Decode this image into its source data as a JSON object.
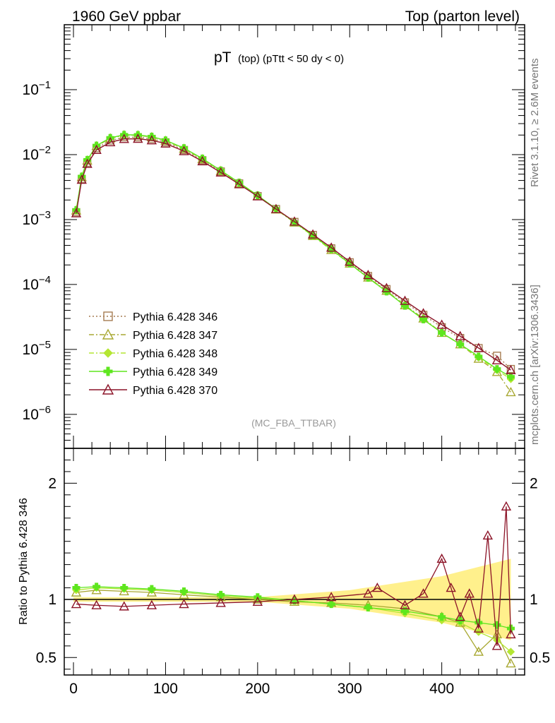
{
  "header": {
    "left": "1960 GeV ppbar",
    "right": "Top (parton level)"
  },
  "side": {
    "rivet": "Rivet 3.1.10, ≥ 2.6M events",
    "mcplots": "mcplots.cern.ch [arXiv:1306.3436]"
  },
  "chart_data": [
    {
      "type": "line",
      "title_main": "pT",
      "title_sub": "(top)  (pTtt < 50 dy < 0)",
      "watermark": "(MC_FBA_TTBAR)",
      "ylabel": "",
      "xlabel": "",
      "yscale": "log",
      "ylim": [
        3e-07,
        1
      ],
      "xlim": [
        -10,
        490
      ],
      "x_ticks": [
        0,
        100,
        200,
        300,
        400
      ],
      "y_tick_labels": [
        "10^-1",
        "10^-2",
        "10^-3",
        "10^-4",
        "10^-5",
        "10^-6"
      ],
      "legend_position": "bottom-left",
      "series": [
        {
          "name": "Pythia 6.428 346",
          "color": "#a67c52",
          "marker": "square",
          "line": "dotted",
          "values_x": [
            3,
            9,
            15,
            25,
            40,
            55,
            70,
            85,
            100,
            120,
            140,
            160,
            180,
            200,
            220,
            240,
            260,
            280,
            300,
            320,
            340,
            360,
            380,
            400,
            420,
            440,
            460,
            475
          ],
          "values_y": [
            0.0013,
            0.0042,
            0.0075,
            0.0125,
            0.0165,
            0.0185,
            0.0185,
            0.0175,
            0.0155,
            0.0118,
            0.0082,
            0.0055,
            0.0036,
            0.0023,
            0.00145,
            0.00092,
            0.00058,
            0.00036,
            0.00022,
            0.000135,
            8.5e-05,
            5.3e-05,
            3.4e-05,
            2.2e-05,
            1.5e-05,
            1.05e-05,
            8e-06,
            5e-06
          ]
        },
        {
          "name": "Pythia 6.428 347",
          "color": "#a8a832",
          "marker": "triangle-open",
          "line": "dashdot",
          "values_x": [
            3,
            9,
            15,
            25,
            40,
            55,
            70,
            85,
            100,
            120,
            140,
            160,
            180,
            200,
            220,
            240,
            260,
            280,
            300,
            320,
            340,
            360,
            380,
            400,
            420,
            440,
            460,
            475
          ],
          "values_y": [
            0.00138,
            0.0045,
            0.0081,
            0.0135,
            0.0178,
            0.0199,
            0.0198,
            0.0186,
            0.0163,
            0.0123,
            0.0085,
            0.0056,
            0.0036,
            0.0023,
            0.00143,
            0.0009,
            0.00056,
            0.00034,
            0.00021,
            0.000128,
            8e-05,
            4.8e-05,
            3e-05,
            1.8e-05,
            1.2e-05,
            7.2e-06,
            4.5e-06,
            2.2e-06
          ]
        },
        {
          "name": "Pythia 6.428 348",
          "color": "#b4e632",
          "marker": "diamond",
          "line": "dashdot",
          "values_x": [
            3,
            9,
            15,
            25,
            40,
            55,
            70,
            85,
            100,
            120,
            140,
            160,
            180,
            200,
            220,
            240,
            260,
            280,
            300,
            320,
            340,
            360,
            380,
            400,
            420,
            440,
            460,
            475
          ],
          "values_y": [
            0.0014,
            0.0046,
            0.0082,
            0.0137,
            0.018,
            0.0201,
            0.02,
            0.0188,
            0.0165,
            0.0125,
            0.0086,
            0.0057,
            0.0037,
            0.00235,
            0.00145,
            0.00091,
            0.00056,
            0.00034,
            0.00021,
            0.000126,
            7.8e-05,
            4.7e-05,
            2.9e-05,
            1.8e-05,
            1.2e-05,
            7.5e-06,
            4.8e-06,
            3.5e-06
          ]
        },
        {
          "name": "Pythia 6.428 349",
          "color": "#5ee61e",
          "marker": "cross",
          "line": "solid",
          "values_x": [
            3,
            9,
            15,
            25,
            40,
            55,
            70,
            85,
            100,
            120,
            140,
            160,
            180,
            200,
            220,
            240,
            260,
            280,
            300,
            320,
            340,
            360,
            380,
            400,
            420,
            440,
            460,
            475
          ],
          "values_y": [
            0.0014,
            0.0046,
            0.0083,
            0.0138,
            0.0181,
            0.0202,
            0.0201,
            0.0189,
            0.0166,
            0.0126,
            0.0087,
            0.0057,
            0.0037,
            0.00236,
            0.00146,
            0.00091,
            0.00057,
            0.00035,
            0.00021,
            0.000127,
            7.8e-05,
            4.7e-05,
            2.9e-05,
            1.8e-05,
            1.2e-05,
            7.8e-06,
            5e-06,
            3.8e-06
          ]
        },
        {
          "name": "Pythia 6.428 370",
          "color": "#8c1428",
          "marker": "triangle-open",
          "line": "solid",
          "values_x": [
            3,
            9,
            15,
            25,
            40,
            55,
            70,
            85,
            100,
            120,
            140,
            160,
            180,
            200,
            220,
            240,
            260,
            280,
            300,
            320,
            340,
            360,
            380,
            400,
            420,
            440,
            460,
            475
          ],
          "values_y": [
            0.00125,
            0.0041,
            0.0072,
            0.0118,
            0.0155,
            0.0174,
            0.0175,
            0.0166,
            0.0148,
            0.0113,
            0.0079,
            0.0053,
            0.0035,
            0.00228,
            0.00145,
            0.00093,
            0.00059,
            0.00037,
            0.000225,
            0.00014,
            8.8e-05,
            5.6e-05,
            3.6e-05,
            2.4e-05,
            1.6e-05,
            1.05e-05,
            6.8e-06,
            4.8e-06
          ]
        }
      ]
    },
    {
      "type": "line",
      "ylabel": "Ratio to Pythia 6.428 346",
      "xlabel": "",
      "ylim": [
        0.35,
        2.3
      ],
      "xlim": [
        -10,
        490
      ],
      "y_ticks": [
        0.5,
        1,
        2
      ],
      "y_tick_labels": [
        "0.5",
        "1",
        "2"
      ],
      "x_ticks": [
        0,
        100,
        200,
        300,
        400
      ],
      "x_tick_labels": [
        "0",
        "100",
        "200",
        "300",
        "400"
      ],
      "reference_band": {
        "color": "#fff08c",
        "upper_at_x": [
          [
            0,
            1.02
          ],
          [
            200,
            1.02
          ],
          [
            300,
            1.08
          ],
          [
            400,
            1.2
          ],
          [
            475,
            1.35
          ]
        ],
        "lower_at_x": [
          [
            0,
            0.98
          ],
          [
            200,
            0.98
          ],
          [
            300,
            0.92
          ],
          [
            400,
            0.8
          ],
          [
            475,
            0.65
          ]
        ]
      },
      "series": [
        {
          "name": "Pythia 6.428 347",
          "color": "#a8a832",
          "values_x": [
            3,
            25,
            55,
            85,
            120,
            160,
            200,
            240,
            280,
            320,
            360,
            400,
            420,
            440,
            460,
            475
          ],
          "values_y": [
            1.06,
            1.08,
            1.07,
            1.06,
            1.04,
            1.02,
            1.0,
            0.98,
            0.97,
            0.95,
            0.92,
            0.85,
            0.8,
            0.55,
            0.7,
            0.45
          ]
        },
        {
          "name": "Pythia 6.428 348",
          "color": "#b4e632",
          "values_x": [
            3,
            25,
            55,
            85,
            120,
            160,
            200,
            240,
            280,
            320,
            360,
            400,
            420,
            440,
            460,
            475
          ],
          "values_y": [
            1.08,
            1.1,
            1.09,
            1.08,
            1.06,
            1.03,
            1.01,
            0.99,
            0.96,
            0.93,
            0.88,
            0.82,
            0.8,
            0.72,
            0.65,
            0.55
          ]
        },
        {
          "name": "Pythia 6.428 349",
          "color": "#5ee61e",
          "values_x": [
            3,
            25,
            55,
            85,
            120,
            160,
            200,
            240,
            280,
            320,
            360,
            400,
            420,
            440,
            460,
            475
          ],
          "values_y": [
            1.1,
            1.11,
            1.1,
            1.09,
            1.07,
            1.04,
            1.02,
            0.99,
            0.96,
            0.93,
            0.9,
            0.85,
            0.82,
            0.8,
            0.78,
            0.75
          ]
        },
        {
          "name": "Pythia 6.428 370",
          "color": "#8c1428",
          "values_x": [
            3,
            25,
            55,
            85,
            120,
            160,
            200,
            240,
            280,
            320,
            330,
            360,
            380,
            400,
            410,
            420,
            430,
            440,
            450,
            460,
            470,
            475
          ],
          "values_y": [
            0.96,
            0.95,
            0.94,
            0.95,
            0.96,
            0.97,
            0.98,
            1.0,
            1.02,
            1.05,
            1.1,
            0.95,
            1.05,
            1.35,
            1.1,
            0.85,
            1.05,
            0.75,
            1.55,
            0.6,
            1.8,
            0.7
          ]
        }
      ]
    }
  ]
}
